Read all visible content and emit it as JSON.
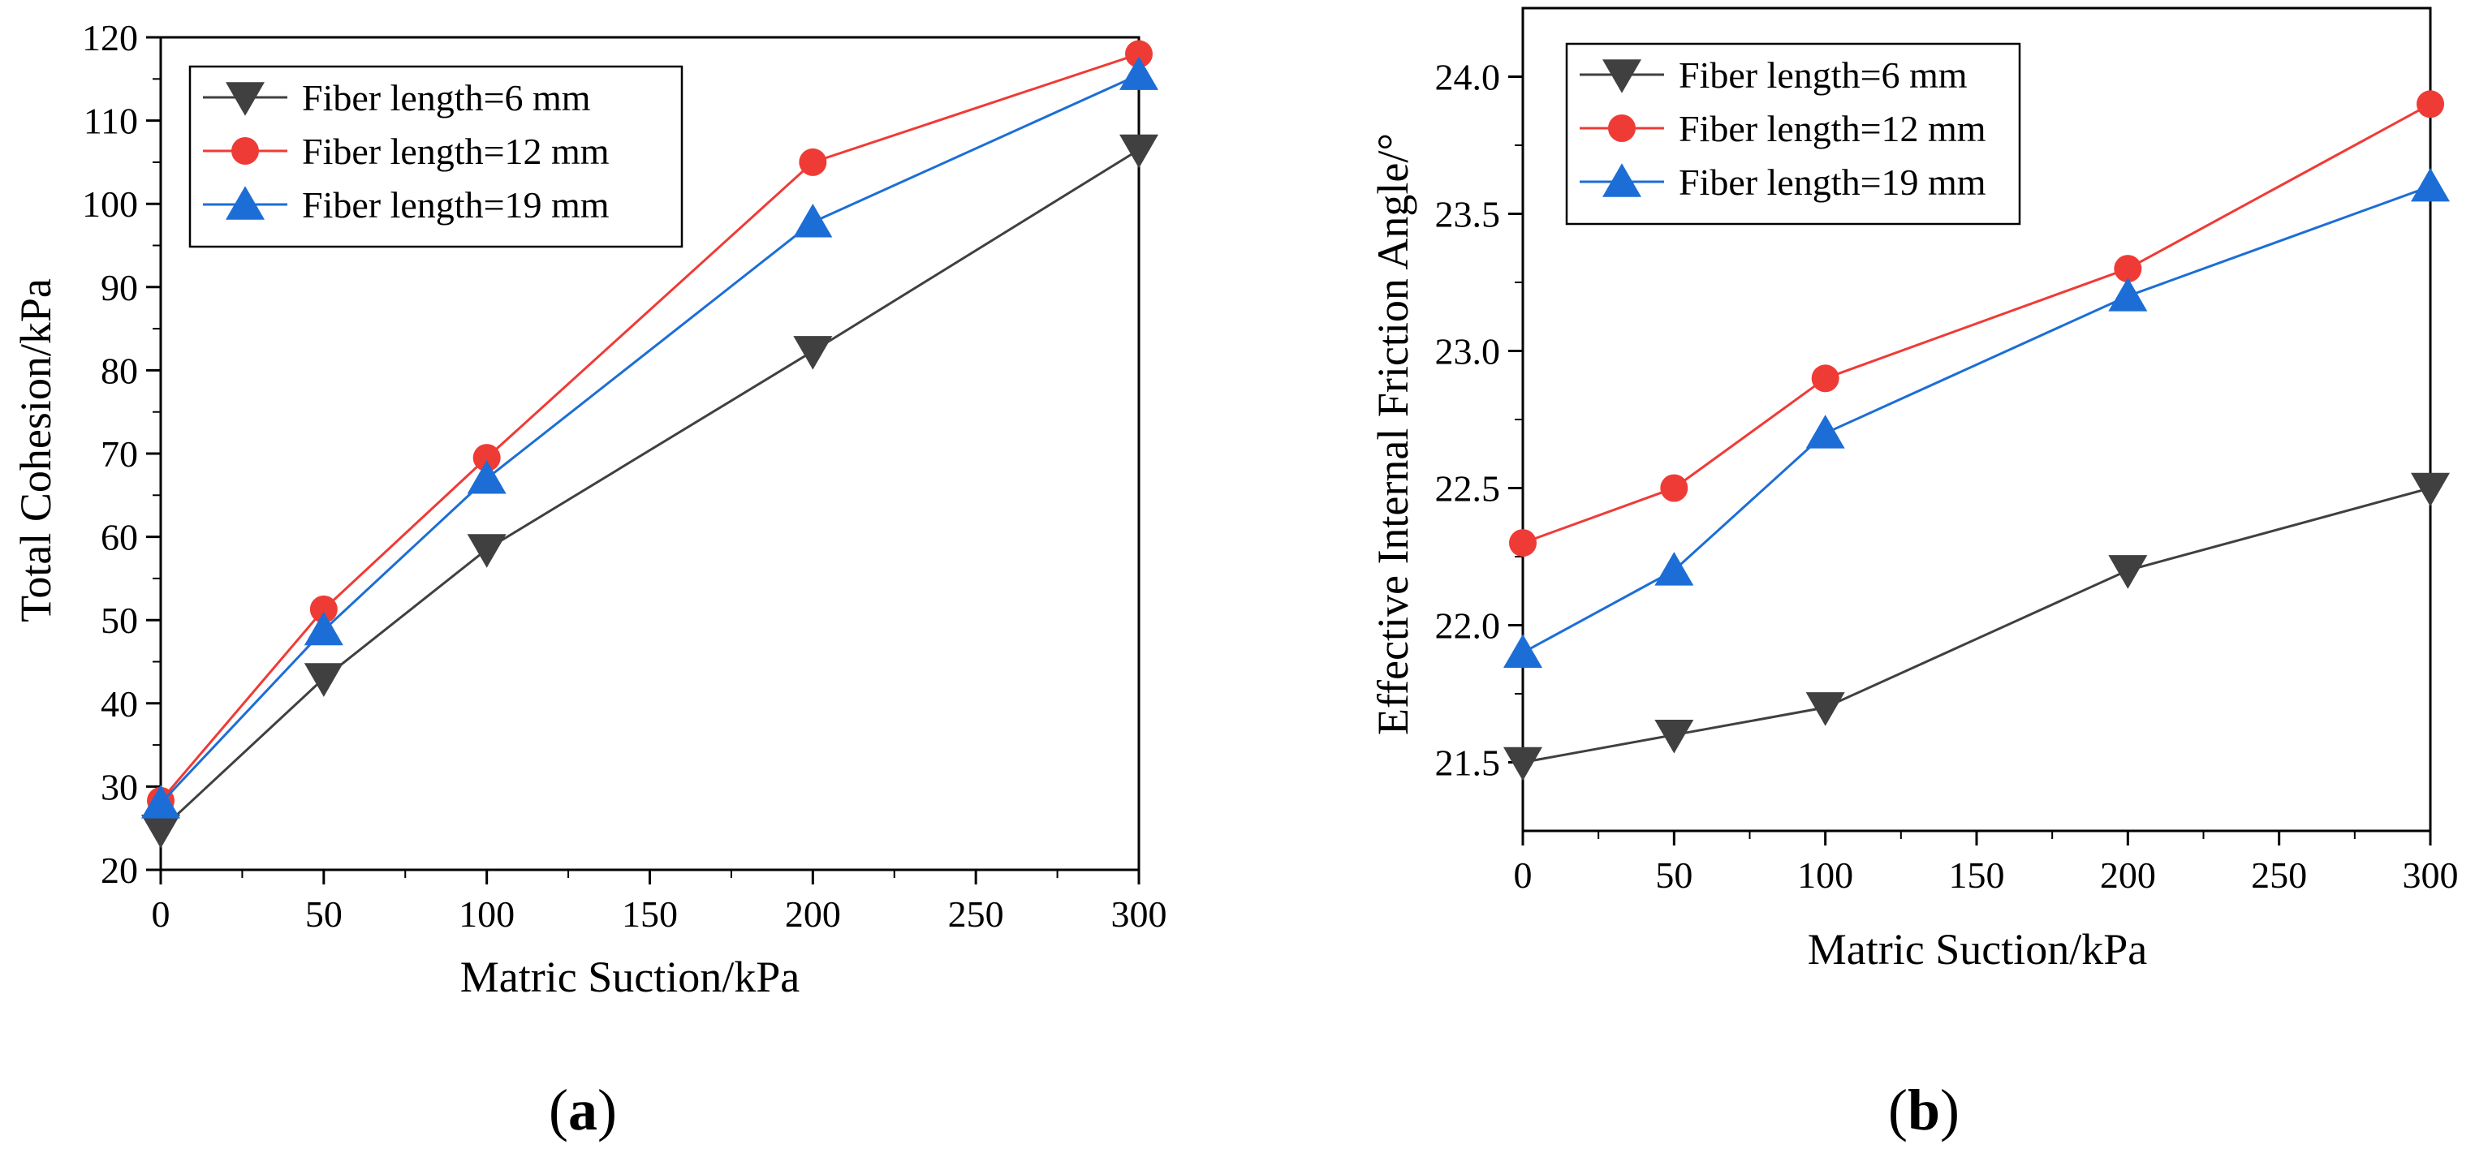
{
  "colors": {
    "series": [
      "#404040",
      "#ef3b36",
      "#1c6ed6"
    ],
    "axis": "#000000",
    "background": "#ffffff"
  },
  "marker_shapes": [
    "triangle-down",
    "circle",
    "triangle-up"
  ],
  "panel_labels": [
    {
      "open": "(",
      "letter": "a",
      "close": ")"
    },
    {
      "open": "(",
      "letter": "b",
      "close": ")"
    }
  ],
  "chart_data": [
    {
      "type": "line",
      "xlabel": "Matric Suction/kPa",
      "ylabel": "Total Cohesion/kPa",
      "xlim": [
        0,
        300
      ],
      "ylim": [
        20,
        120
      ],
      "xticks": [
        0,
        50,
        100,
        150,
        200,
        250,
        300
      ],
      "yticks": [
        20,
        30,
        40,
        50,
        60,
        70,
        80,
        90,
        100,
        110,
        120
      ],
      "tick_decimals": 0,
      "grid": false,
      "legend_position": "top-left",
      "x": [
        0,
        50,
        100,
        200,
        300
      ],
      "series": [
        {
          "name": "Fiber length=6 mm",
          "values": [
            24.8,
            43.0,
            58.5,
            82.3,
            106.5
          ]
        },
        {
          "name": "Fiber length=12 mm",
          "values": [
            28.3,
            51.3,
            69.5,
            105.0,
            118.0
          ]
        },
        {
          "name": "Fiber length=19 mm",
          "values": [
            28.0,
            48.8,
            67.0,
            97.8,
            115.5
          ]
        }
      ]
    },
    {
      "type": "line",
      "xlabel": "Matric Suction/kPa",
      "ylabel": "Effective Internal Friction Angle/°",
      "xlim": [
        0,
        300
      ],
      "ylim": [
        21.25,
        24.25
      ],
      "xticks": [
        0,
        50,
        100,
        150,
        200,
        250,
        300
      ],
      "yticks": [
        21.5,
        22.0,
        22.5,
        23.0,
        23.5,
        24.0
      ],
      "tick_decimals": 1,
      "grid": false,
      "legend_position": "top-left",
      "x": [
        0,
        50,
        100,
        200,
        300
      ],
      "series": [
        {
          "name": "Fiber length=6 mm",
          "values": [
            21.5,
            21.6,
            21.7,
            22.2,
            22.5
          ]
        },
        {
          "name": "Fiber length=12 mm",
          "values": [
            22.3,
            22.5,
            22.9,
            23.3,
            23.9
          ]
        },
        {
          "name": "Fiber length=19 mm",
          "values": [
            21.9,
            22.2,
            22.7,
            23.2,
            23.6
          ]
        }
      ]
    }
  ]
}
